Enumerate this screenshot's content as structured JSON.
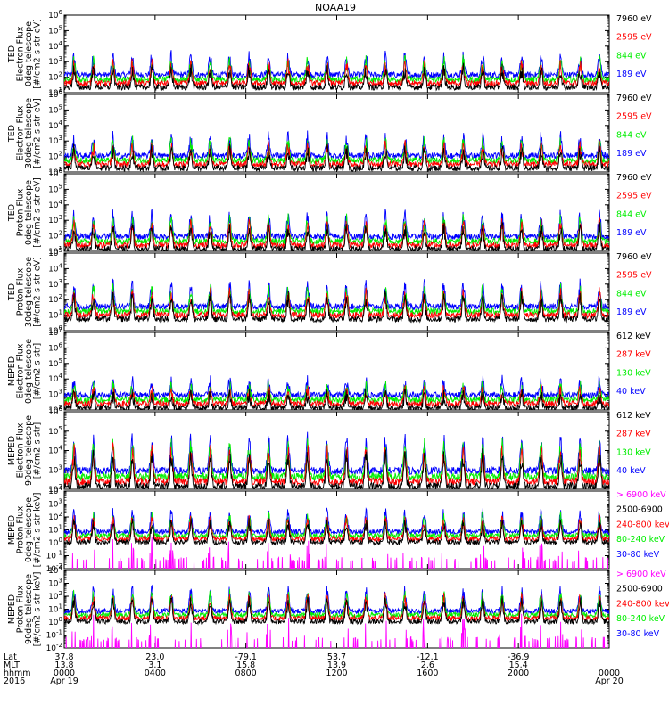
{
  "title": "NOAA19",
  "colors": {
    "blue": "#0000ff",
    "red": "#ff0000",
    "green": "#00ee00",
    "black": "#000000",
    "magenta": "#ff00ff"
  },
  "chart_data": [
    {
      "type": "line",
      "ylabel": [
        "TED",
        "Electron Flux",
        "0deg telescope",
        "[#/cm2-s-str-eV]"
      ],
      "log": true,
      "ymin_exp": 1,
      "ymax_exp": 6,
      "base": 1.6,
      "spread": 1.1,
      "series": [
        {
          "name": "7960 eV",
          "color": "#000000"
        },
        {
          "name": "2595 eV",
          "color": "#ff0000"
        },
        {
          "name": "844 eV",
          "color": "#00ee00"
        },
        {
          "name": "189 eV",
          "color": "#0000ff"
        }
      ]
    },
    {
      "type": "line",
      "ylabel": [
        "TED",
        "Electron Flux",
        "30deg telescope",
        "[#/cm2-s-str-eV]"
      ],
      "log": true,
      "ymin_exp": 1,
      "ymax_exp": 6,
      "base": 1.5,
      "spread": 1.1,
      "series": [
        {
          "name": "7960 eV",
          "color": "#000000"
        },
        {
          "name": "2595 eV",
          "color": "#ff0000"
        },
        {
          "name": "844 eV",
          "color": "#00ee00"
        },
        {
          "name": "189 eV",
          "color": "#0000ff"
        }
      ]
    },
    {
      "type": "line",
      "ylabel": [
        "TED",
        "Proton Flux",
        "0deg telescope",
        "[#/cm2-s-str-eV]"
      ],
      "log": true,
      "ymin_exp": 1,
      "ymax_exp": 6,
      "base": 1.4,
      "spread": 1.3,
      "series": [
        {
          "name": "7960 eV",
          "color": "#000000"
        },
        {
          "name": "2595 eV",
          "color": "#ff0000"
        },
        {
          "name": "844 eV",
          "color": "#00ee00"
        },
        {
          "name": "189 eV",
          "color": "#0000ff"
        }
      ]
    },
    {
      "type": "line",
      "ylabel": [
        "TED",
        "Proton Flux",
        "30deg telescope",
        "[#/cm2-s-str-eV]"
      ],
      "log": true,
      "ymin_exp": 0,
      "ymax_exp": 5,
      "base": 1.0,
      "spread": 1.3,
      "series": [
        {
          "name": "7960 eV",
          "color": "#000000"
        },
        {
          "name": "2595 eV",
          "color": "#ff0000"
        },
        {
          "name": "844 eV",
          "color": "#00ee00"
        },
        {
          "name": "189 eV",
          "color": "#0000ff"
        }
      ]
    },
    {
      "type": "line",
      "ylabel": [
        "MEPED",
        "Electron Flux",
        "0deg telescope",
        "[#/cm2-s-str]"
      ],
      "log": true,
      "ymin_exp": 2,
      "ymax_exp": 7,
      "base": 2.4,
      "spread": 0.8,
      "series": [
        {
          "name": "612 keV",
          "color": "#000000"
        },
        {
          "name": "287 keV",
          "color": "#ff0000"
        },
        {
          "name": "130 keV",
          "color": "#00ee00"
        },
        {
          "name": "40 keV",
          "color": "#0000ff"
        }
      ]
    },
    {
      "type": "line",
      "ylabel": [
        "MEPED",
        "Electron Flux",
        "90deg telescope",
        "[#/cm2-s-str]"
      ],
      "log": true,
      "ymin_exp": 2,
      "ymax_exp": 6,
      "base": 2.4,
      "spread": 1.5,
      "series": [
        {
          "name": "612 keV",
          "color": "#000000"
        },
        {
          "name": "287 keV",
          "color": "#ff0000"
        },
        {
          "name": "130 keV",
          "color": "#00ee00"
        },
        {
          "name": "40 keV",
          "color": "#0000ff"
        }
      ]
    },
    {
      "type": "line",
      "ylabel": [
        "MEPED",
        "Proton Flux",
        "0deg telescope",
        "[#/cm2-s-str-keV]"
      ],
      "log": true,
      "ymin_exp": -2,
      "ymax_exp": 4,
      "base": 0.3,
      "spread": 1.4,
      "series": [
        {
          "name": "> 6900 keV",
          "color": "#ff00ff"
        },
        {
          "name": "2500-6900",
          "color": "#000000"
        },
        {
          "name": "240-800 keV",
          "color": "#ff0000"
        },
        {
          "name": "80-240 keV",
          "color": "#00ee00"
        },
        {
          "name": "30-80 keV",
          "color": "#0000ff"
        }
      ]
    },
    {
      "type": "line",
      "ylabel": [
        "MEPED",
        "Proton Flux",
        "90deg telescope",
        "[#/cm2-s-str-keV]"
      ],
      "log": true,
      "ymin_exp": -2,
      "ymax_exp": 4,
      "base": 0.3,
      "spread": 1.5,
      "series": [
        {
          "name": "> 6900 keV",
          "color": "#ff00ff"
        },
        {
          "name": "2500-6900",
          "color": "#000000"
        },
        {
          "name": "240-800 keV",
          "color": "#ff0000"
        },
        {
          "name": "80-240 keV",
          "color": "#00ee00"
        },
        {
          "name": "30-80 keV",
          "color": "#0000ff"
        }
      ]
    }
  ],
  "x_axis": {
    "row_labels": [
      "Lat",
      "MLT",
      "hhmm",
      "2016"
    ],
    "ticks": [
      {
        "frac": 0.0,
        "lat": "37.8",
        "mlt": "13.8",
        "hhmm": "0000",
        "date": "Apr 19"
      },
      {
        "frac": 0.1667,
        "lat": "23.0",
        "mlt": "3.1",
        "hhmm": "0400",
        "date": ""
      },
      {
        "frac": 0.3333,
        "lat": "-79.1",
        "mlt": "15.8",
        "hhmm": "0800",
        "date": ""
      },
      {
        "frac": 0.5,
        "lat": "53.7",
        "mlt": "13.9",
        "hhmm": "1200",
        "date": ""
      },
      {
        "frac": 0.6667,
        "lat": "-12.1",
        "mlt": "2.6",
        "hhmm": "1600",
        "date": ""
      },
      {
        "frac": 0.8333,
        "lat": "-36.9",
        "mlt": "15.4",
        "hhmm": "2000",
        "date": ""
      },
      {
        "frac": 1.0,
        "lat": "",
        "mlt": "",
        "hhmm": "0000",
        "date": "Apr 20"
      }
    ]
  }
}
